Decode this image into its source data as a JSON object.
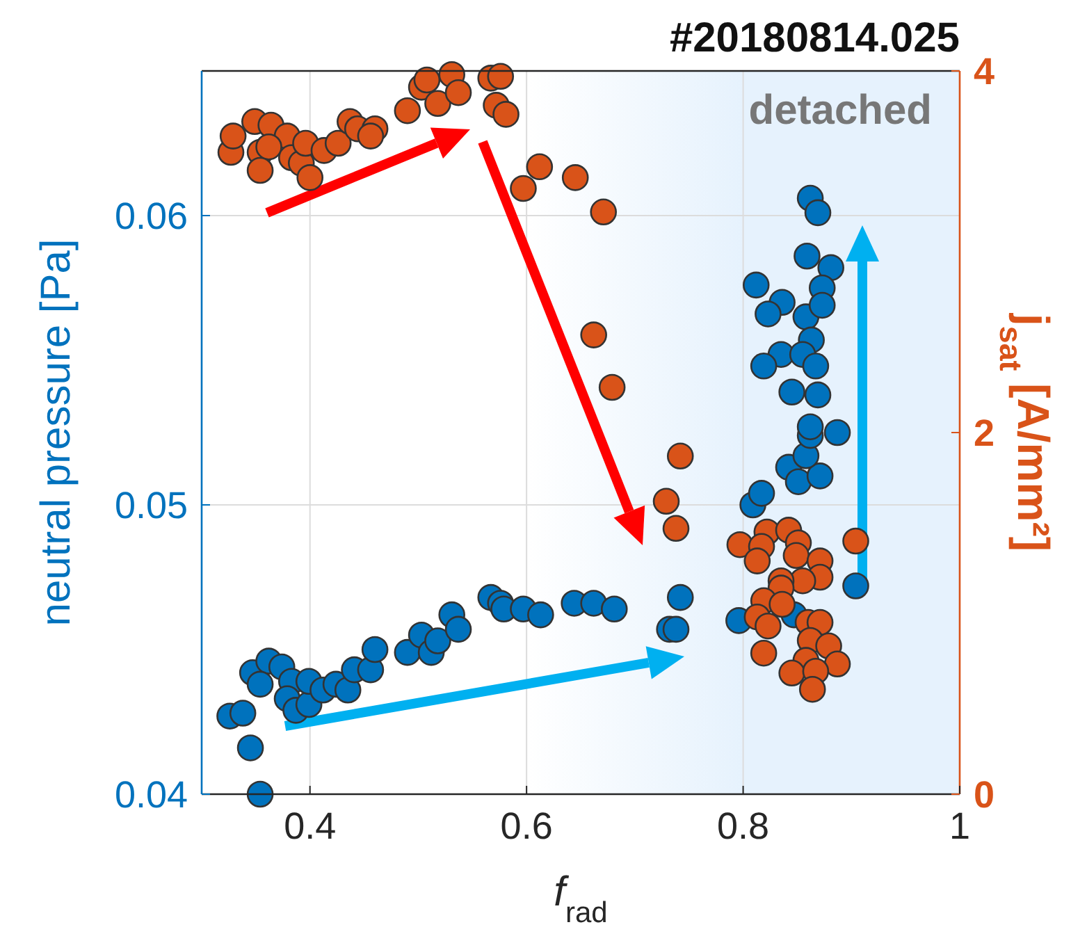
{
  "chart_data": {
    "type": "scatter",
    "title": "#20180814.025",
    "xlabel": "f$_{rad}$",
    "ylabel": "neutral pressure [Pa]",
    "y2label": "j$_{sat}$ [A/mm²]",
    "xlim": [
      0.3,
      1
    ],
    "xticks": [
      0.4,
      0.6,
      0.8,
      1
    ],
    "ylim": [
      0.04,
      0.065
    ],
    "yticks": [
      0.04,
      0.05,
      0.06
    ],
    "y2lim": [
      0,
      4
    ],
    "y2ticks": [
      0,
      2,
      4
    ],
    "grid": true,
    "marker": "circle",
    "bands": [
      {
        "axis": "x",
        "from": 0.6,
        "to": 1,
        "label": "detached",
        "color": "#e6f2fd"
      }
    ],
    "series": [
      {
        "color": "#0072bd",
        "x": [
          0.326,
          0.338,
          0.345,
          0.354,
          0.347,
          0.362,
          0.374,
          0.354,
          0.383,
          0.379,
          0.387,
          0.399,
          0.399,
          0.412,
          0.424,
          0.435,
          0.441,
          0.456,
          0.46,
          0.49,
          0.503,
          0.512,
          0.518,
          0.531,
          0.537,
          0.567,
          0.576,
          0.579,
          0.597,
          0.613,
          0.644,
          0.662,
          0.681,
          0.742,
          0.732,
          0.738,
          0.796,
          0.847,
          0.904,
          0.809,
          0.817,
          0.842,
          0.851,
          0.871,
          0.858,
          0.862,
          0.887,
          0.862,
          0.869,
          0.859,
          0.881,
          0.812,
          0.873,
          0.836,
          0.823,
          0.858,
          0.873,
          0.863,
          0.835,
          0.855,
          0.867,
          0.819,
          0.845,
          0.869,
          0.862
        ],
        "values": [
          0.0427,
          0.0428,
          0.0416,
          0.04,
          0.0442,
          0.0446,
          0.0444,
          0.0438,
          0.0439,
          0.0433,
          0.0429,
          0.0431,
          0.0439,
          0.0436,
          0.0438,
          0.0436,
          0.0443,
          0.0443,
          0.045,
          0.0449,
          0.0455,
          0.0449,
          0.0453,
          0.0462,
          0.0457,
          0.0468,
          0.0466,
          0.0464,
          0.0464,
          0.0462,
          0.0466,
          0.0466,
          0.0464,
          0.0468,
          0.0457,
          0.0457,
          0.046,
          0.0462,
          0.0472,
          0.05,
          0.0504,
          0.0513,
          0.0508,
          0.051,
          0.0517,
          0.0524,
          0.0525,
          0.0606,
          0.0601,
          0.0586,
          0.0582,
          0.0576,
          0.0575,
          0.057,
          0.0566,
          0.0565,
          0.0569,
          0.0557,
          0.0552,
          0.0552,
          0.0548,
          0.0548,
          0.0539,
          0.0538,
          0.0527
        ]
      },
      {
        "color": "#d95319",
        "axis": "y2",
        "x": [
          0.327,
          0.329,
          0.349,
          0.364,
          0.379,
          0.354,
          0.362,
          0.383,
          0.392,
          0.4,
          0.354,
          0.396,
          0.413,
          0.426,
          0.437,
          0.444,
          0.46,
          0.456,
          0.49,
          0.503,
          0.508,
          0.518,
          0.531,
          0.537,
          0.567,
          0.576,
          0.572,
          0.581,
          0.597,
          0.612,
          0.645,
          0.671,
          0.662,
          0.679,
          0.742,
          0.729,
          0.738,
          0.797,
          0.822,
          0.817,
          0.813,
          0.842,
          0.851,
          0.849,
          0.871,
          0.871,
          0.855,
          0.835,
          0.835,
          0.819,
          0.813,
          0.823,
          0.836,
          0.86,
          0.871,
          0.862,
          0.879,
          0.819,
          0.858,
          0.887,
          0.845,
          0.867,
          0.864,
          0.904
        ],
        "values": [
          3.55,
          3.64,
          3.72,
          3.7,
          3.64,
          3.55,
          3.58,
          3.52,
          3.49,
          3.41,
          3.45,
          3.6,
          3.56,
          3.6,
          3.72,
          3.68,
          3.68,
          3.64,
          3.78,
          3.91,
          3.95,
          3.82,
          3.98,
          3.88,
          3.96,
          3.97,
          3.81,
          3.76,
          3.35,
          3.47,
          3.41,
          3.22,
          2.54,
          2.25,
          1.87,
          1.62,
          1.47,
          1.38,
          1.45,
          1.37,
          1.29,
          1.46,
          1.39,
          1.32,
          1.29,
          1.2,
          1.18,
          1.18,
          1.14,
          1.07,
          0.98,
          0.93,
          1.05,
          0.95,
          0.95,
          0.85,
          0.82,
          0.78,
          0.74,
          0.72,
          0.67,
          0.68,
          0.58,
          1.4
        ]
      }
    ]
  }
}
